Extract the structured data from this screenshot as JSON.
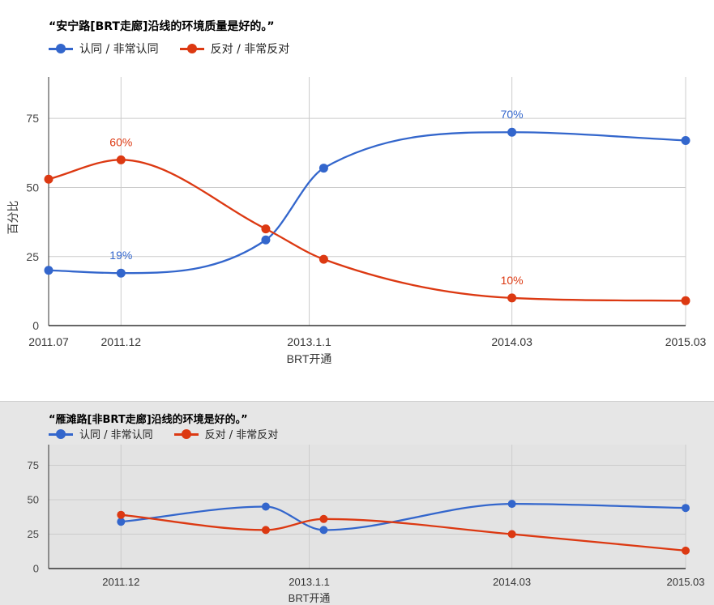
{
  "chart_data": [
    {
      "type": "line",
      "title": "“安宁路[BRT走廊]沿线的环境质量是好的。”",
      "xlabel": "BRT开通",
      "ylabel": "百分比",
      "ylim": [
        0,
        90
      ],
      "xlim": [
        "2011.07",
        "2015.03"
      ],
      "x_ticks": [
        "2011.07",
        "2011.12",
        "2013.1.1",
        "2014.03",
        "2015.03"
      ],
      "y_ticks": [
        0,
        25,
        50,
        75
      ],
      "grid": true,
      "legend_position": "top-left",
      "series": [
        {
          "name": "认同 / 非常认同",
          "color": "#3366cc",
          "points": [
            {
              "x": "2011.07",
              "y": 20
            },
            {
              "x": "2011.12",
              "y": 19,
              "label": "19%"
            },
            {
              "x": "2012.10",
              "y": 31
            },
            {
              "x": "2013.02",
              "y": 57
            },
            {
              "x": "2014.03",
              "y": 70,
              "label": "70%"
            },
            {
              "x": "2015.03",
              "y": 67
            }
          ]
        },
        {
          "name": "反对 / 非常反对",
          "color": "#dc3912",
          "points": [
            {
              "x": "2011.07",
              "y": 53
            },
            {
              "x": "2011.12",
              "y": 60,
              "label": "60%"
            },
            {
              "x": "2012.10",
              "y": 35
            },
            {
              "x": "2013.02",
              "y": 24
            },
            {
              "x": "2014.03",
              "y": 10,
              "label": "10%"
            },
            {
              "x": "2015.03",
              "y": 9
            }
          ]
        }
      ]
    },
    {
      "type": "line",
      "title": "“雁滩路[非BRT走廊]沿线的环境是好的。”",
      "xlabel": "BRT开通",
      "ylabel": "",
      "ylim": [
        0,
        90
      ],
      "xlim": [
        "2011.07",
        "2015.03"
      ],
      "x_ticks": [
        "2011.12",
        "2013.1.1",
        "2014.03",
        "2015.03"
      ],
      "y_ticks": [
        0,
        25,
        50,
        75
      ],
      "grid": true,
      "legend_position": "top-left",
      "series": [
        {
          "name": "认同 / 非常认同",
          "color": "#3366cc",
          "points": [
            {
              "x": "2011.12",
              "y": 34
            },
            {
              "x": "2012.10",
              "y": 45
            },
            {
              "x": "2013.02",
              "y": 28
            },
            {
              "x": "2014.03",
              "y": 47
            },
            {
              "x": "2015.03",
              "y": 44
            }
          ]
        },
        {
          "name": "反对 / 非常反对",
          "color": "#dc3912",
          "points": [
            {
              "x": "2011.12",
              "y": 39
            },
            {
              "x": "2012.10",
              "y": 28
            },
            {
              "x": "2013.02",
              "y": 36
            },
            {
              "x": "2014.03",
              "y": 25
            },
            {
              "x": "2015.03",
              "y": 13
            }
          ]
        }
      ]
    }
  ]
}
